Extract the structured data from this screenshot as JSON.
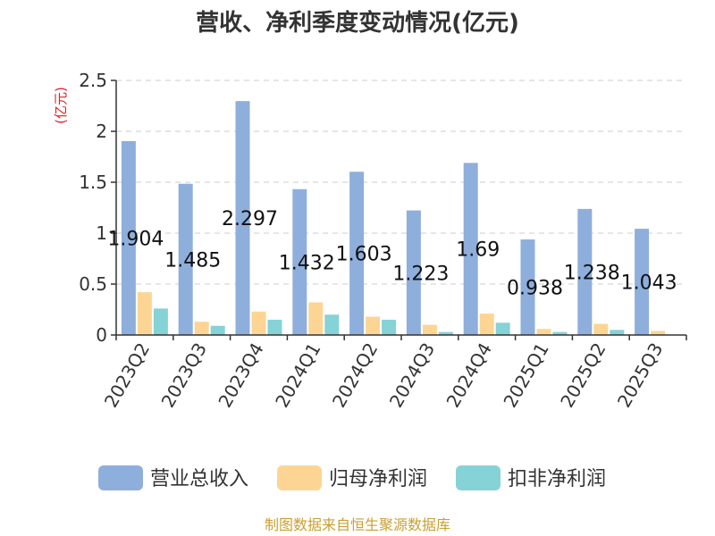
{
  "chart_data": {
    "type": "bar",
    "title": "营收、净利季度变动情况(亿元)",
    "ylabel": "(亿元)",
    "ylim": [
      0,
      2.5
    ],
    "yticks": [
      "0",
      "0.5",
      "1",
      "1.5",
      "2",
      "2.5"
    ],
    "grid": true,
    "legend_position": "bottom",
    "categories": [
      "2023Q2",
      "2023Q3",
      "2023Q4",
      "2024Q1",
      "2024Q2",
      "2024Q3",
      "2024Q4",
      "2025Q1",
      "2025Q2",
      "2025Q3"
    ],
    "series": [
      {
        "name": "营业总收入",
        "color": "#8EAEDC",
        "values": [
          1.904,
          1.485,
          2.297,
          1.432,
          1.603,
          1.223,
          1.69,
          0.938,
          1.238,
          1.043
        ],
        "labels": [
          "1.904",
          "1.485",
          "2.297",
          "1.432",
          "1.603",
          "1.223",
          "1.69",
          "0.938",
          "1.238",
          "1.043"
        ]
      },
      {
        "name": "归母净利润",
        "color": "#FCD594",
        "values": [
          0.42,
          0.13,
          0.23,
          0.32,
          0.18,
          0.1,
          0.21,
          0.06,
          0.11,
          0.04
        ]
      },
      {
        "name": "扣非净利润",
        "color": "#85D2D7",
        "values": [
          0.26,
          0.09,
          0.15,
          0.2,
          0.15,
          0.03,
          0.12,
          0.03,
          0.05,
          0.0
        ]
      }
    ]
  },
  "source_text": "制图数据来自恒生聚源数据库",
  "colors": {
    "axis_label": "#E02020",
    "source": "#C8A032",
    "grid": "#CCCCCC"
  }
}
